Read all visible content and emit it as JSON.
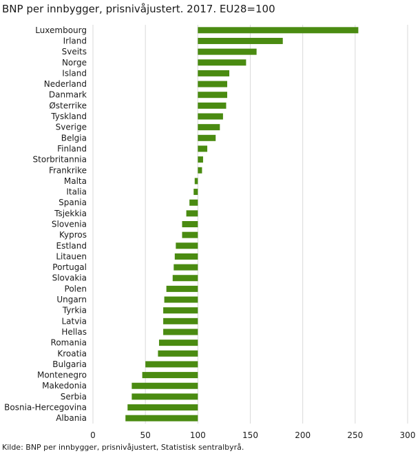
{
  "title": "BNP per innbygger, prisnivåjustert. 2017. EU28=100",
  "source": "Kilde: BNP per innbygger, prisnivåjustert, Statistisk sentralbyrå.",
  "chart_data": {
    "type": "bar",
    "orientation": "horizontal",
    "title": "BNP per innbygger, prisnivåjustert. 2017. EU28=100",
    "xlabel": "",
    "ylabel": "",
    "baseline": 100,
    "xlim": [
      0,
      300
    ],
    "xticks": [
      0,
      50,
      100,
      150,
      200,
      250,
      300
    ],
    "grid": "vertical",
    "bar_color": "#4a8b11",
    "categories": [
      "Luxembourg",
      "Irland",
      "Sveits",
      "Norge",
      "Island",
      "Nederland",
      "Danmark",
      "Østerrike",
      "Tyskland",
      "Sverige",
      "Belgia",
      "Finland",
      "Storbritannia",
      "Frankrike",
      "Malta",
      "Italia",
      "Spania",
      "Tsjekkia",
      "Slovenia",
      "Kypros",
      "Estland",
      "Litauen",
      "Portugal",
      "Slovakia",
      "Polen",
      "Ungarn",
      "Tyrkia",
      "Latvia",
      "Hellas",
      "Romania",
      "Kroatia",
      "Bulgaria",
      "Montenegro",
      "Makedonia",
      "Serbia",
      "Bosnia-Hercegovina",
      "Albania"
    ],
    "values": [
      253,
      181,
      156,
      146,
      130,
      128,
      128,
      127,
      124,
      121,
      117,
      109,
      105,
      104,
      97,
      96,
      92,
      89,
      85,
      85,
      79,
      78,
      77,
      76,
      70,
      68,
      67,
      67,
      67,
      63,
      62,
      50,
      47,
      37,
      37,
      33,
      31
    ]
  }
}
